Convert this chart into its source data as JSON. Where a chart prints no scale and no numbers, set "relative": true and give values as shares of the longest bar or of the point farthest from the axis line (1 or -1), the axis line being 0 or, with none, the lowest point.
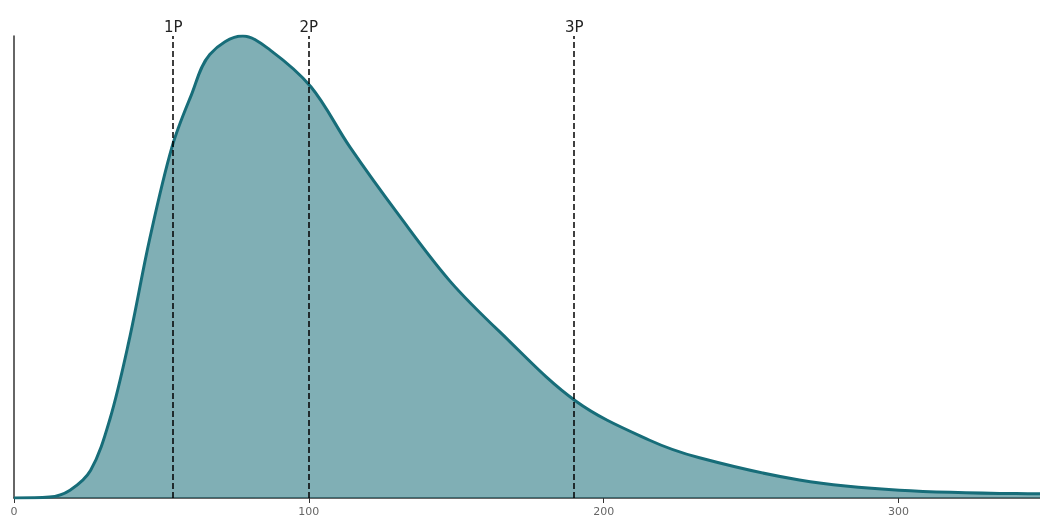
{
  "chart_data": {
    "type": "area",
    "relative": true,
    "x": [
      0,
      12,
      19,
      26,
      32.5,
      39,
      46,
      53.6,
      60,
      66.4,
      77.6,
      86.8,
      100.7,
      113.9,
      130.8,
      147.8,
      164.7,
      190.5,
      215.6,
      232.5,
      266.4,
      300.3,
      348
    ],
    "series": [
      {
        "color": "#176d79",
        "values": [
          0,
          0.002,
          0.017,
          0.06,
          0.17,
          0.34,
          0.56,
          0.76,
          0.87,
          0.96,
          1,
          0.97,
          0.89,
          0.76,
          0.61,
          0.47,
          0.36,
          0.21,
          0.125,
          0.087,
          0.039,
          0.017,
          0.009
        ]
      }
    ],
    "xlim": [
      0,
      348
    ],
    "xticks": [
      0,
      100,
      200,
      300
    ],
    "grid": false,
    "marker": "none",
    "ref_lines": [
      {
        "axis": "x",
        "value": 54,
        "label": "1P",
        "line_style": "dashed",
        "color": "#000000"
      },
      {
        "axis": "x",
        "value": 100,
        "label": "2P",
        "line_style": "dashed",
        "color": "#000000"
      },
      {
        "axis": "x",
        "value": 190,
        "label": "3P",
        "line_style": "dashed",
        "color": "#000000"
      }
    ]
  }
}
